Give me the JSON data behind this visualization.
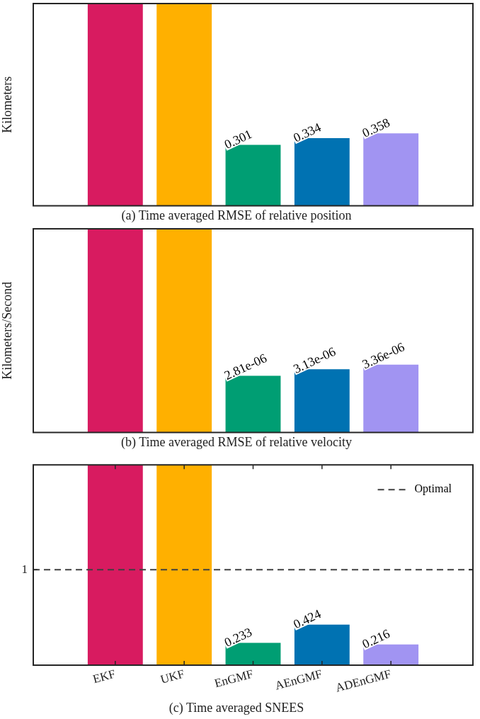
{
  "chart_data": [
    {
      "type": "bar",
      "title": "(a) Time averaged RMSE of relative position",
      "ylabel": "Kilometers",
      "categories": [
        null,
        null,
        null,
        null,
        null
      ],
      "values": [
        1,
        1,
        0.301,
        0.334,
        0.358
      ],
      "colors": [
        "#d81b60",
        "#ffb000",
        "#009e73",
        "#0072b2",
        "#a194f2"
      ],
      "value_labels": [
        null,
        null,
        "0.301",
        "0.334",
        "0.358"
      ],
      "ylim": [
        0,
        1
      ],
      "tick_labels": false
    },
    {
      "type": "bar",
      "title": "(b) Time averaged RMSE of relative velocity",
      "ylabel": "Kilometers/Second",
      "categories": [
        null,
        null,
        null,
        null,
        null
      ],
      "values": [
        1.01e-05,
        1.01e-05,
        2.81e-06,
        3.13e-06,
        3.36e-06
      ],
      "colors": [
        "#d81b60",
        "#ffb000",
        "#009e73",
        "#0072b2",
        "#a194f2"
      ],
      "value_labels": [
        null,
        null,
        "2.81e-06",
        "3.13e-06",
        "3.36e-06"
      ],
      "ylim": [
        0,
        1.01e-05
      ],
      "tick_labels": false
    },
    {
      "type": "bar",
      "title": "(c) Time averaged SNEES",
      "categories": [
        "EKF",
        "UKF",
        "EnGMF",
        "AEnGMF",
        "ADEnGMF"
      ],
      "values": [
        2.1,
        2.1,
        0.233,
        0.424,
        0.216
      ],
      "colors": [
        "#d81b60",
        "#ffb000",
        "#009e73",
        "#0072b2",
        "#a194f2"
      ],
      "value_labels": [
        null,
        null,
        "0.233",
        "0.424",
        "0.216"
      ],
      "ylim": [
        0,
        2.1
      ],
      "yticks": [
        1
      ],
      "ref_lines": [
        {
          "axis": "y",
          "value": 1,
          "label": "Optimal",
          "color": "#404040",
          "line_style": "dashed"
        }
      ],
      "legend": "top right"
    }
  ]
}
